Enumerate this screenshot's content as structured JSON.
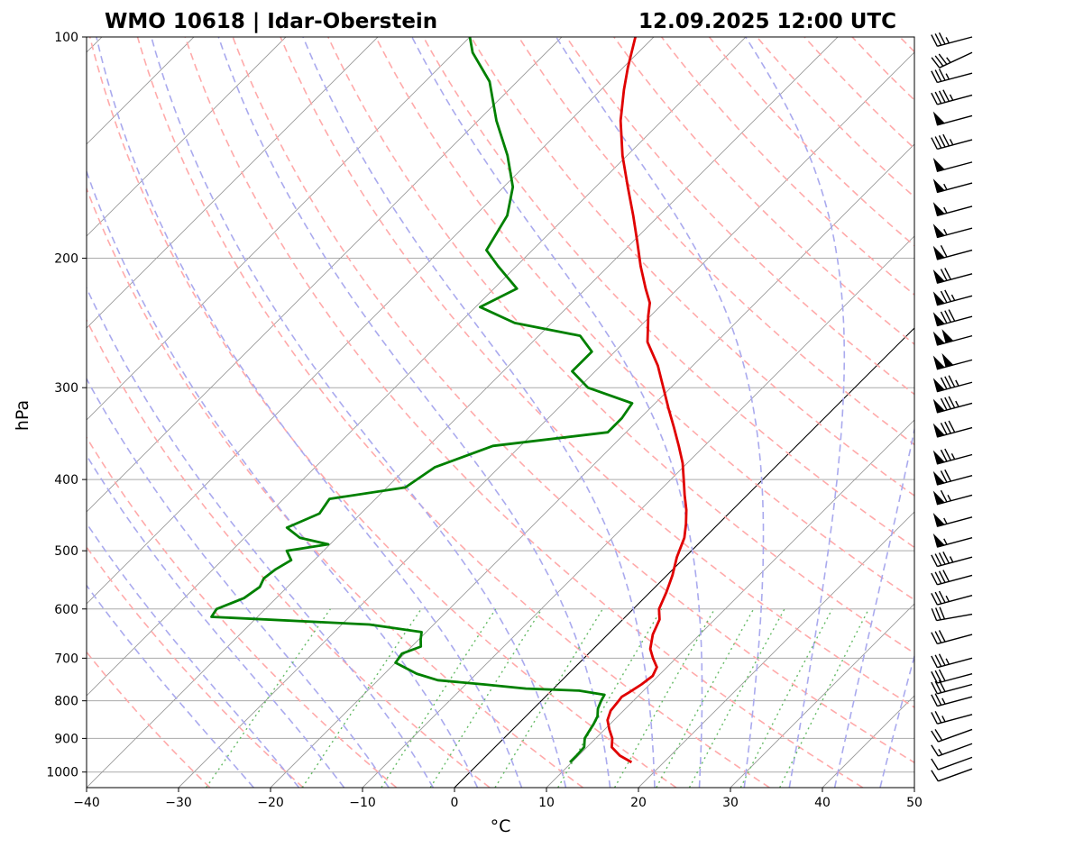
{
  "chart_data": {
    "type": "skew-t",
    "title_left": "WMO 10618 | Idar-Oberstein",
    "title_right": "12.09.2025 12:00 UTC",
    "xlabel": "°C",
    "ylabel": "hPa",
    "xlim": [
      -40,
      50
    ],
    "ylim": [
      1050,
      100
    ],
    "x_ticks": [
      -40,
      -30,
      -20,
      -10,
      0,
      10,
      20,
      30,
      40,
      50
    ],
    "x_tick_labels": [
      "−40",
      "−30",
      "−20",
      "−10",
      "0",
      "10",
      "20",
      "30",
      "40",
      "50"
    ],
    "y_ticks": [
      100,
      200,
      300,
      400,
      500,
      600,
      700,
      800,
      900,
      1000
    ],
    "y_tick_labels": [
      "100",
      "200",
      "300",
      "400",
      "500",
      "600",
      "700",
      "800",
      "900",
      "1000"
    ],
    "colors": {
      "temperature": "#e00000",
      "dewpoint": "#008000",
      "dry_adiabat": "#ffaaaa",
      "moist_adiabat": "#aaaaee",
      "mixing_ratio": "#66bb66",
      "isotherm": "#999999",
      "grid": "#aaaaaa"
    },
    "temperature": {
      "name": "Temperature",
      "points": [
        [
          970,
          16.5
        ],
        [
          950,
          14.5
        ],
        [
          925,
          12.7
        ],
        [
          900,
          11.8
        ],
        [
          875,
          10.5
        ],
        [
          850,
          9.3
        ],
        [
          825,
          8.6
        ],
        [
          800,
          8.4
        ],
        [
          790,
          8.3
        ],
        [
          780,
          8.6
        ],
        [
          760,
          9.1
        ],
        [
          740,
          9.4
        ],
        [
          720,
          8.9
        ],
        [
          700,
          7.5
        ],
        [
          680,
          6.2
        ],
        [
          650,
          4.9
        ],
        [
          620,
          4.0
        ],
        [
          600,
          2.8
        ],
        [
          570,
          1.8
        ],
        [
          540,
          0.6
        ],
        [
          510,
          -0.9
        ],
        [
          480,
          -2.2
        ],
        [
          460,
          -3.5
        ],
        [
          440,
          -5.0
        ],
        [
          420,
          -6.8
        ],
        [
          400,
          -8.6
        ],
        [
          380,
          -10.5
        ],
        [
          360,
          -12.8
        ],
        [
          340,
          -15.3
        ],
        [
          320,
          -18.0
        ],
        [
          300,
          -20.8
        ],
        [
          280,
          -23.8
        ],
        [
          260,
          -27.5
        ],
        [
          245,
          -29.5
        ],
        [
          240,
          -30.2
        ],
        [
          230,
          -31.5
        ],
        [
          220,
          -33.5
        ],
        [
          205,
          -36.5
        ],
        [
          190,
          -39.5
        ],
        [
          175,
          -42.8
        ],
        [
          160,
          -46.5
        ],
        [
          145,
          -50.5
        ],
        [
          130,
          -54.5
        ],
        [
          118,
          -57.5
        ],
        [
          110,
          -59.5
        ],
        [
          100,
          -62.0
        ]
      ]
    },
    "dewpoint": {
      "name": "Dewpoint",
      "points": [
        [
          970,
          9.8
        ],
        [
          950,
          9.8
        ],
        [
          925,
          9.7
        ],
        [
          900,
          8.8
        ],
        [
          880,
          8.5
        ],
        [
          860,
          8.2
        ],
        [
          840,
          7.8
        ],
        [
          820,
          7.0
        ],
        [
          800,
          6.5
        ],
        [
          785,
          6.2
        ],
        [
          775,
          3.0
        ],
        [
          770,
          -3.0
        ],
        [
          760,
          -8.0
        ],
        [
          750,
          -13.5
        ],
        [
          735,
          -16.5
        ],
        [
          710,
          -20.0
        ],
        [
          690,
          -20.3
        ],
        [
          675,
          -19.0
        ],
        [
          660,
          -19.8
        ],
        [
          645,
          -20.5
        ],
        [
          630,
          -27.0
        ],
        [
          615,
          -45.0
        ],
        [
          600,
          -45.3
        ],
        [
          580,
          -43.5
        ],
        [
          560,
          -43.0
        ],
        [
          545,
          -43.5
        ],
        [
          530,
          -43.2
        ],
        [
          515,
          -42.5
        ],
        [
          500,
          -44.0
        ],
        [
          490,
          -40.2
        ],
        [
          480,
          -44.0
        ],
        [
          465,
          -46.5
        ],
        [
          445,
          -44.5
        ],
        [
          425,
          -45.0
        ],
        [
          410,
          -38.0
        ],
        [
          385,
          -37.0
        ],
        [
          360,
          -33.0
        ],
        [
          345,
          -22.0
        ],
        [
          330,
          -22.0
        ],
        [
          315,
          -22.5
        ],
        [
          300,
          -29.0
        ],
        [
          285,
          -32.5
        ],
        [
          268,
          -32.5
        ],
        [
          255,
          -35.5
        ],
        [
          245,
          -44.0
        ],
        [
          233,
          -49.5
        ],
        [
          220,
          -47.5
        ],
        [
          205,
          -52.0
        ],
        [
          195,
          -55.0
        ],
        [
          175,
          -56.5
        ],
        [
          160,
          -59.0
        ],
        [
          145,
          -63.0
        ],
        [
          130,
          -68.0
        ],
        [
          115,
          -73.0
        ],
        [
          105,
          -78.0
        ],
        [
          100,
          -80.0
        ]
      ]
    },
    "wind_barbs": [
      {
        "p": 990,
        "dir": 250,
        "kt": 10
      },
      {
        "p": 955,
        "dir": 250,
        "kt": 10
      },
      {
        "p": 915,
        "dir": 250,
        "kt": 15
      },
      {
        "p": 875,
        "dir": 250,
        "kt": 20
      },
      {
        "p": 835,
        "dir": 255,
        "kt": 25
      },
      {
        "p": 790,
        "dir": 255,
        "kt": 25
      },
      {
        "p": 760,
        "dir": 255,
        "kt": 30
      },
      {
        "p": 735,
        "dir": 255,
        "kt": 30
      },
      {
        "p": 700,
        "dir": 255,
        "kt": 35
      },
      {
        "p": 650,
        "dir": 255,
        "kt": 30
      },
      {
        "p": 610,
        "dir": 260,
        "kt": 30
      },
      {
        "p": 575,
        "dir": 255,
        "kt": 35
      },
      {
        "p": 540,
        "dir": 255,
        "kt": 40
      },
      {
        "p": 510,
        "dir": 255,
        "kt": 45
      },
      {
        "p": 480,
        "dir": 255,
        "kt": 55
      },
      {
        "p": 450,
        "dir": 255,
        "kt": 55
      },
      {
        "p": 420,
        "dir": 255,
        "kt": 65
      },
      {
        "p": 395,
        "dir": 255,
        "kt": 70
      },
      {
        "p": 370,
        "dir": 255,
        "kt": 75
      },
      {
        "p": 340,
        "dir": 255,
        "kt": 80
      },
      {
        "p": 315,
        "dir": 255,
        "kt": 85
      },
      {
        "p": 295,
        "dir": 255,
        "kt": 85
      },
      {
        "p": 275,
        "dir": 255,
        "kt": 100
      },
      {
        "p": 255,
        "dir": 255,
        "kt": 100
      },
      {
        "p": 240,
        "dir": 255,
        "kt": 80
      },
      {
        "p": 225,
        "dir": 255,
        "kt": 75
      },
      {
        "p": 210,
        "dir": 255,
        "kt": 70
      },
      {
        "p": 195,
        "dir": 255,
        "kt": 60
      },
      {
        "p": 182,
        "dir": 255,
        "kt": 55
      },
      {
        "p": 170,
        "dir": 255,
        "kt": 55
      },
      {
        "p": 158,
        "dir": 255,
        "kt": 55
      },
      {
        "p": 148,
        "dir": 255,
        "kt": 50
      },
      {
        "p": 138,
        "dir": 255,
        "kt": 45
      },
      {
        "p": 128,
        "dir": 255,
        "kt": 50
      },
      {
        "p": 120,
        "dir": 255,
        "kt": 45
      },
      {
        "p": 112,
        "dir": 255,
        "kt": 35
      },
      {
        "p": 105,
        "dir": 245,
        "kt": 35
      },
      {
        "p": 100,
        "dir": 255,
        "kt": 35
      }
    ]
  }
}
